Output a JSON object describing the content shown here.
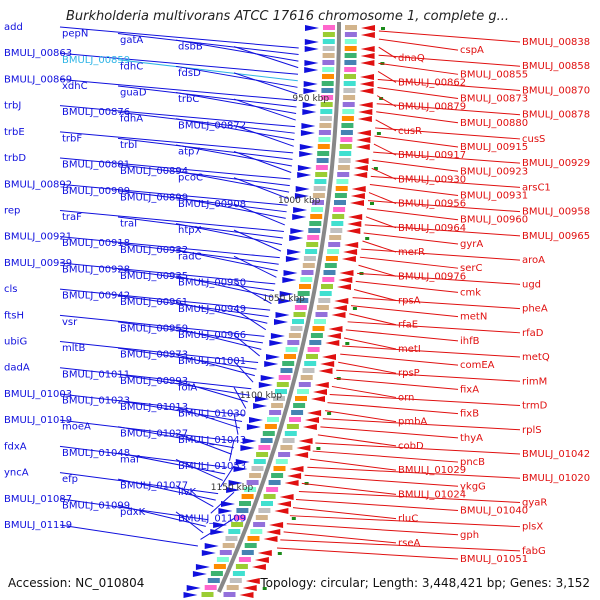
{
  "header": {
    "title": "Burkholderia multivorans ATCC 17616 chromosome 1, complete g..."
  },
  "footer": {
    "accession": "Accession: NC_010804",
    "summary": "Topology: circular; Length: 3,448,421 bp; Genes: 3,152"
  },
  "colors": {
    "forward": "#1010dd",
    "reverse": "#e01010",
    "highlight": "#2fb5e6",
    "tick": "#1a8a1a",
    "axis": "#888888"
  },
  "map": {
    "ticks": [
      "950 kbp",
      "1000 kbp",
      "1050 kbp",
      "1100 kbp",
      "1150 kbp"
    ],
    "left_labels": [
      "add",
      "pepN",
      "gatA",
      "dsbB",
      "BMULJ_00863",
      "BMULJ_00859",
      "fdhC",
      "fdsD",
      "BMULJ_00869",
      "xdhC",
      "guaD",
      "trbC",
      "trbJ",
      "BMULJ_00876",
      "fdhA",
      "BMULJ_00872",
      "trbE",
      "trbF",
      "trbI",
      "atp7",
      "trbD",
      "BMULJ_00881",
      "BMULJ_00894",
      "pcoC",
      "BMULJ_00892",
      "BMULJ_00909",
      "BMULJ_00899",
      "BMULJ_00908",
      "rep",
      "traF",
      "traI",
      "htpX",
      "BMULJ_00921",
      "BMULJ_00918",
      "BMULJ_00932",
      "radC",
      "BMULJ_00939",
      "BMULJ_00928",
      "BMULJ_00935",
      "BMULJ_00950",
      "cls",
      "BMULJ_00942",
      "BMULJ_00961",
      "BMULJ_00949",
      "ftsH",
      "vsr",
      "BMULJ_00959",
      "BMULJ_00966",
      "ubiG",
      "mltB",
      "BMULJ_00973",
      "BMULJ_01001",
      "dadA",
      "BMULJ_01011",
      "BMULJ_00993",
      "folA",
      "BMULJ_01003",
      "BMULJ_01023",
      "BMULJ_01013",
      "BMULJ_01030",
      "BMULJ_01019",
      "moeA",
      "BMULJ_01027",
      "BMULJ_01043",
      "fdxA",
      "BMULJ_01048",
      "maf",
      "BMULJ_01053",
      "yncA",
      "efp",
      "BMULJ_01077",
      "livK",
      "BMULJ_01087",
      "BMULJ_01099",
      "pdxK",
      "BMULJ_01109",
      "BMULJ_01119"
    ],
    "right_labels": [
      "BMULJ_00838",
      "cspA",
      "dnaQ",
      "BMULJ_00858",
      "BMULJ_00855",
      "BMULJ_00862",
      "BMULJ_00870",
      "BMULJ_00873",
      "BMULJ_00879",
      "BMULJ_00878",
      "BMULJ_00880",
      "cusR",
      "cusS",
      "BMULJ_00915",
      "BMULJ_00917",
      "BMULJ_00929",
      "BMULJ_00923",
      "BMULJ_00930",
      "arsC1",
      "BMULJ_00931",
      "BMULJ_00956",
      "BMULJ_00958",
      "BMULJ_00960",
      "BMULJ_00964",
      "BMULJ_00965",
      "gyrA",
      "merR",
      "aroA",
      "serC",
      "BMULJ_00976",
      "ugd",
      "cmk",
      "rpsA",
      "pheA",
      "metN",
      "rfaE",
      "rfaD",
      "ihfB",
      "metI",
      "metQ",
      "comEA",
      "rpsP",
      "rimM",
      "fixA",
      "orn",
      "trmD",
      "fixB",
      "pmbA",
      "rplS",
      "thyA",
      "cobD",
      "BMULJ_01042",
      "pncB",
      "BMULJ_01029",
      "BMULJ_01020",
      "ykgG",
      "BMULJ_01024",
      "gyaR",
      "BMULJ_01040",
      "rluC",
      "plsX",
      "gph",
      "rseA",
      "fabG",
      "BMULJ_01051"
    ]
  }
}
